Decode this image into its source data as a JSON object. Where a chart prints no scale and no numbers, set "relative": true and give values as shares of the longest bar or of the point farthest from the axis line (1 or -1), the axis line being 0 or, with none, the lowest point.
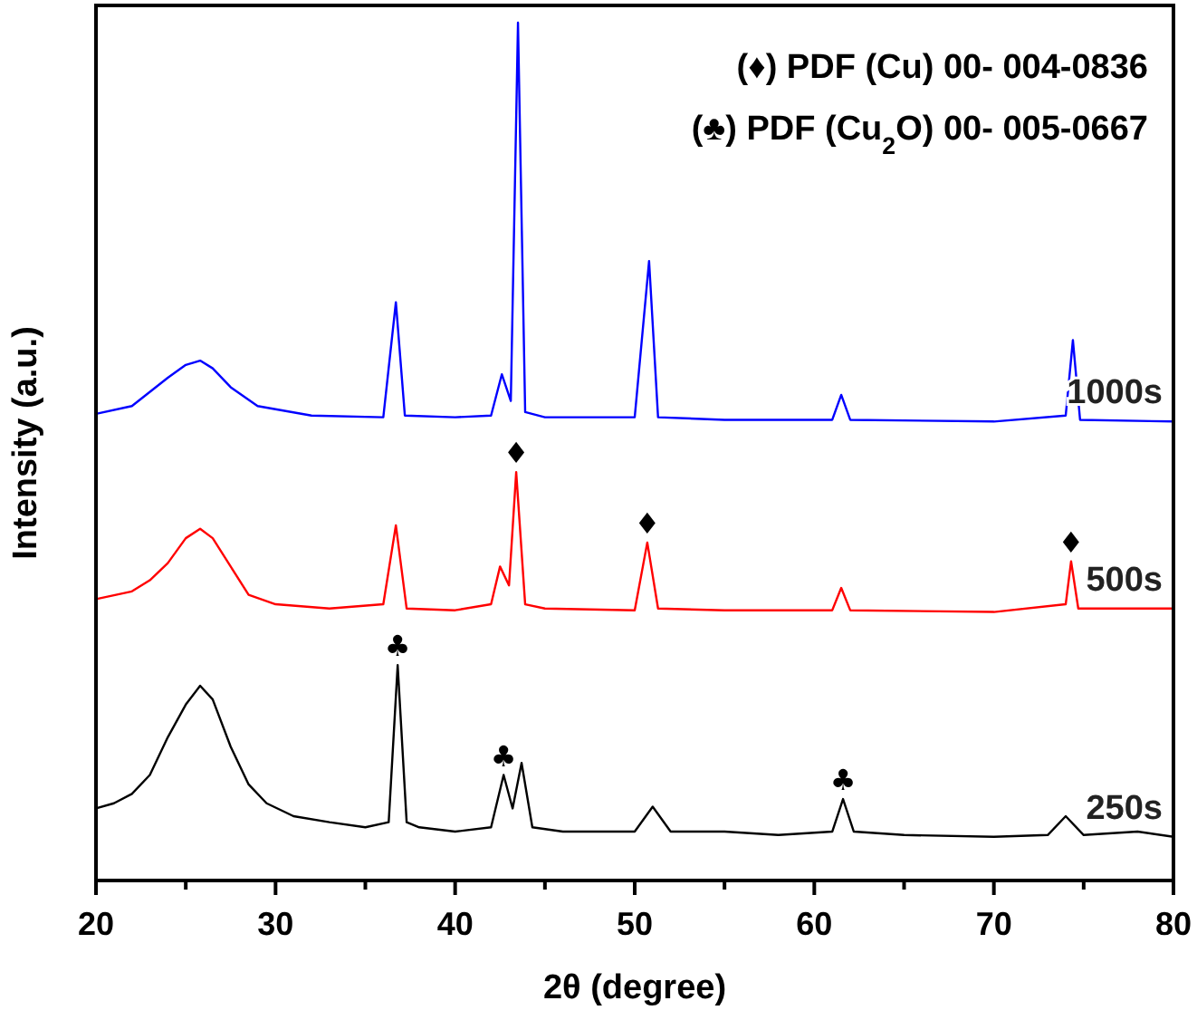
{
  "chart_data": {
    "type": "line",
    "relative": true,
    "xlabel": "2θ (degree)",
    "ylabel": "Intensity (a.u.)",
    "xlim": [
      20,
      80
    ],
    "xticks": [
      20,
      {
        "value": 25,
        "label": null
      },
      30,
      {
        "value": 35,
        "label": null
      },
      40,
      {
        "value": 45,
        "label": null
      },
      50,
      {
        "value": 55,
        "label": null
      },
      60,
      {
        "value": 65,
        "label": null
      },
      70,
      {
        "value": 75,
        "label": null
      },
      80
    ],
    "grid": false,
    "marker": "none",
    "line_style": "solid",
    "series": [
      {
        "name": "1000s",
        "color": "#0000ff",
        "x": [
          20,
          22,
          24,
          25,
          25.8,
          26.5,
          27.5,
          29,
          32,
          36,
          36.7,
          37.2,
          40,
          42,
          42.6,
          43.1,
          43.5,
          43.9,
          45,
          50,
          50.8,
          51.3,
          55,
          61,
          61.5,
          62,
          70,
          74,
          74.4,
          74.8,
          80
        ],
        "values": [
          0.544,
          0.553,
          0.586,
          0.601,
          0.606,
          0.597,
          0.575,
          0.553,
          0.542,
          0.54,
          0.674,
          0.542,
          0.54,
          0.542,
          0.59,
          0.559,
          1,
          0.546,
          0.54,
          0.54,
          0.722,
          0.54,
          0.537,
          0.537,
          0.566,
          0.537,
          0.535,
          0.542,
          0.63,
          0.537,
          0.535
        ]
      },
      {
        "name": "500s",
        "color": "#ff0000",
        "x": [
          20,
          22,
          23,
          24,
          25,
          25.8,
          26.5,
          27.5,
          28.5,
          30,
          33,
          36,
          36.7,
          37.3,
          40,
          42,
          42.5,
          43,
          43.4,
          43.9,
          45,
          50,
          50.7,
          51.3,
          55,
          61,
          61.5,
          62,
          70,
          74,
          74.3,
          74.7,
          80
        ],
        "values": [
          0.328,
          0.337,
          0.35,
          0.37,
          0.399,
          0.41,
          0.399,
          0.366,
          0.333,
          0.322,
          0.317,
          0.322,
          0.414,
          0.317,
          0.315,
          0.322,
          0.366,
          0.344,
          0.476,
          0.322,
          0.317,
          0.315,
          0.394,
          0.317,
          0.315,
          0.315,
          0.341,
          0.315,
          0.313,
          0.322,
          0.372,
          0.317,
          0.317
        ]
      },
      {
        "name": "250s",
        "color": "#000000",
        "x": [
          20,
          21,
          22,
          23,
          24,
          25,
          25.8,
          26.5,
          27.5,
          28.5,
          29.5,
          31,
          33,
          35,
          36.3,
          36.8,
          37.3,
          38,
          40,
          42,
          42.7,
          43.2,
          43.7,
          44.3,
          46,
          50,
          51,
          52,
          55,
          58,
          61,
          61.6,
          62.2,
          65,
          70,
          73,
          74,
          75,
          78,
          80
        ],
        "values": [
          0.084,
          0.09,
          0.101,
          0.123,
          0.167,
          0.205,
          0.227,
          0.211,
          0.156,
          0.112,
          0.09,
          0.075,
          0.068,
          0.062,
          0.068,
          0.251,
          0.068,
          0.062,
          0.057,
          0.062,
          0.123,
          0.084,
          0.137,
          0.062,
          0.057,
          0.057,
          0.086,
          0.057,
          0.057,
          0.053,
          0.057,
          0.095,
          0.057,
          0.053,
          0.051,
          0.053,
          0.075,
          0.053,
          0.057,
          0.051
        ]
      }
    ],
    "annotations": [
      "(♦) PDF (Cu) 00- 004-0836",
      "(♣) PDF (Cu$_{2}$O) 00- 005-0667",
      {
        "text": "♦",
        "x": 43.4,
        "y": 0.476
      },
      {
        "text": "♦",
        "x": 50.7,
        "y": 0.394
      },
      {
        "text": "♦",
        "x": 74.3,
        "y": 0.372
      },
      {
        "text": "♣",
        "x": 36.8,
        "y": 0.251
      },
      {
        "text": "♣",
        "x": 42.7,
        "y": 0.123
      },
      {
        "text": "♣",
        "x": 61.6,
        "y": 0.095
      }
    ]
  }
}
